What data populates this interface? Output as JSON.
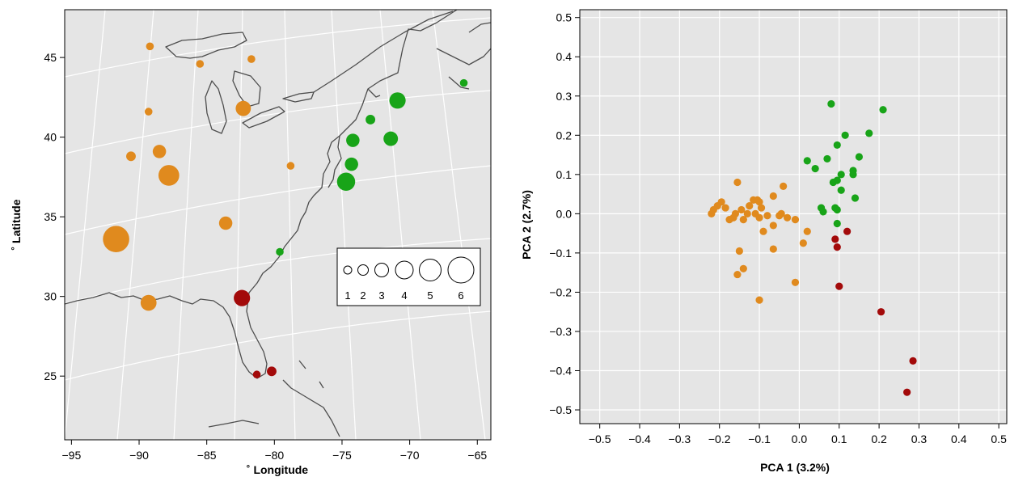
{
  "chart_data": [
    {
      "type": "map-bubble",
      "xlabel": "˚ Longitude",
      "ylabel": "˚ Latitude",
      "xlim": [
        -95.5,
        -64
      ],
      "ylim": [
        21,
        48
      ],
      "xticks": [
        -95,
        -90,
        -85,
        -80,
        -75,
        -70,
        -65
      ],
      "yticks": [
        25,
        30,
        35,
        40,
        45
      ],
      "grid": true,
      "background": "#e5e5e5",
      "legend": {
        "placement": "bottom-right",
        "sizes": [
          "1",
          "2",
          "3",
          "4",
          "5",
          "6"
        ]
      },
      "series": [
        {
          "color": "#e08a1e",
          "points": [
            {
              "lon": -89.2,
              "lat": 45.7,
              "size": 1
            },
            {
              "lon": -85.5,
              "lat": 44.6,
              "size": 1
            },
            {
              "lon": -81.7,
              "lat": 44.9,
              "size": 1
            },
            {
              "lon": -89.3,
              "lat": 41.6,
              "size": 1
            },
            {
              "lon": -82.3,
              "lat": 41.8,
              "size": 3
            },
            {
              "lon": -90.6,
              "lat": 38.8,
              "size": 1.5
            },
            {
              "lon": -88.5,
              "lat": 39.1,
              "size": 2.5
            },
            {
              "lon": -87.8,
              "lat": 37.6,
              "size": 4.5
            },
            {
              "lon": -78.8,
              "lat": 38.2,
              "size": 1
            },
            {
              "lon": -83.6,
              "lat": 34.6,
              "size": 2.5
            },
            {
              "lon": -91.7,
              "lat": 33.6,
              "size": 6
            },
            {
              "lon": -89.3,
              "lat": 29.6,
              "size": 3.2
            }
          ]
        },
        {
          "color": "#18a418",
          "points": [
            {
              "lon": -70.9,
              "lat": 42.3,
              "size": 3.3
            },
            {
              "lon": -72.9,
              "lat": 41.1,
              "size": 1.5
            },
            {
              "lon": -74.2,
              "lat": 39.8,
              "size": 2.5
            },
            {
              "lon": -71.4,
              "lat": 39.9,
              "size": 2.8
            },
            {
              "lon": -74.3,
              "lat": 38.3,
              "size": 2.5
            },
            {
              "lon": -74.7,
              "lat": 37.2,
              "size": 3.8
            },
            {
              "lon": -66.0,
              "lat": 43.4,
              "size": 1
            },
            {
              "lon": -79.6,
              "lat": 32.8,
              "size": 1
            }
          ]
        },
        {
          "color": "#a30a0a",
          "points": [
            {
              "lon": -82.4,
              "lat": 29.9,
              "size": 3.3
            },
            {
              "lon": -80.2,
              "lat": 25.3,
              "size": 1.5
            },
            {
              "lon": -81.3,
              "lat": 25.1,
              "size": 1
            }
          ]
        }
      ]
    },
    {
      "type": "scatter",
      "xlabel": "PCA 1 (3.2%)",
      "ylabel": "PCA 2  (2.7%)",
      "xlim": [
        -0.55,
        0.52
      ],
      "ylim": [
        -0.535,
        0.52
      ],
      "xticks": [
        -0.5,
        -0.4,
        -0.3,
        -0.2,
        -0.1,
        0.0,
        0.1,
        0.2,
        0.3,
        0.4,
        0.5
      ],
      "xticklabels": [
        "−0.5",
        "−0.4",
        "−0.3",
        "−0.2",
        "−0.1",
        "0.0",
        "0.1",
        "0.2",
        "0.3",
        "0.4",
        "0.5"
      ],
      "yticks": [
        0.5,
        0.4,
        0.3,
        0.2,
        0.1,
        0.0,
        -0.1,
        -0.2,
        -0.3,
        -0.4,
        -0.5
      ],
      "yticklabels": [
        "0.5",
        "0.4",
        "0.3",
        "0.2",
        "0.1",
        "0.0",
        "−0.1",
        "−0.2",
        "−0.3",
        "−0.4",
        "−0.5"
      ],
      "grid": true,
      "background": "#e5e5e5",
      "series": [
        {
          "color": "#e08a1e",
          "points": [
            [
              -0.22,
              0.0
            ],
            [
              -0.215,
              0.01
            ],
            [
              -0.205,
              0.02
            ],
            [
              -0.195,
              0.03
            ],
            [
              -0.185,
              0.015
            ],
            [
              -0.175,
              -0.015
            ],
            [
              -0.165,
              -0.01
            ],
            [
              -0.155,
              0.08
            ],
            [
              -0.16,
              0.0
            ],
            [
              -0.145,
              0.01
            ],
            [
              -0.14,
              -0.015
            ],
            [
              -0.13,
              0.0
            ],
            [
              -0.125,
              0.02
            ],
            [
              -0.115,
              0.035
            ],
            [
              -0.11,
              0.0
            ],
            [
              -0.105,
              0.035
            ],
            [
              -0.1,
              0.03
            ],
            [
              -0.095,
              0.015
            ],
            [
              -0.1,
              -0.01
            ],
            [
              -0.08,
              -0.005
            ],
            [
              -0.065,
              0.045
            ],
            [
              -0.05,
              -0.005
            ],
            [
              -0.045,
              0.0
            ],
            [
              -0.04,
              0.07
            ],
            [
              -0.03,
              -0.01
            ],
            [
              -0.065,
              -0.03
            ],
            [
              -0.09,
              -0.045
            ],
            [
              -0.065,
              -0.09
            ],
            [
              -0.01,
              -0.015
            ],
            [
              0.02,
              -0.045
            ],
            [
              0.01,
              -0.075
            ],
            [
              -0.15,
              -0.095
            ],
            [
              -0.14,
              -0.14
            ],
            [
              -0.155,
              -0.155
            ],
            [
              -0.01,
              -0.175
            ],
            [
              -0.1,
              -0.22
            ]
          ]
        },
        {
          "color": "#18a418",
          "points": [
            [
              0.08,
              0.28
            ],
            [
              0.21,
              0.265
            ],
            [
              0.175,
              0.205
            ],
            [
              0.115,
              0.2
            ],
            [
              0.095,
              0.175
            ],
            [
              0.15,
              0.145
            ],
            [
              0.07,
              0.14
            ],
            [
              0.02,
              0.135
            ],
            [
              0.04,
              0.115
            ],
            [
              0.135,
              0.11
            ],
            [
              0.105,
              0.1
            ],
            [
              0.135,
              0.1
            ],
            [
              0.085,
              0.08
            ],
            [
              0.095,
              0.085
            ],
            [
              0.105,
              0.06
            ],
            [
              0.14,
              0.04
            ],
            [
              0.055,
              0.015
            ],
            [
              0.06,
              0.005
            ],
            [
              0.09,
              0.015
            ],
            [
              0.095,
              0.01
            ],
            [
              0.095,
              -0.025
            ]
          ]
        },
        {
          "color": "#a30a0a",
          "points": [
            [
              0.09,
              -0.065
            ],
            [
              0.12,
              -0.045
            ],
            [
              0.095,
              -0.085
            ],
            [
              0.1,
              -0.185
            ],
            [
              0.205,
              -0.25
            ],
            [
              0.285,
              -0.375
            ],
            [
              0.27,
              -0.455
            ]
          ]
        }
      ]
    }
  ]
}
